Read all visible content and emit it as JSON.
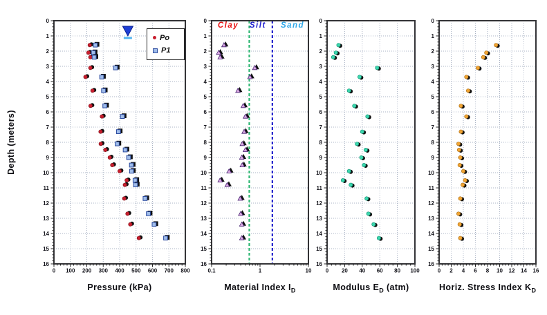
{
  "figure": {
    "ylabel": "Depth (meters)",
    "background": "#ffffff",
    "grid_color": "#aab3c4"
  },
  "chart_data": [
    {
      "id": "pressure",
      "type": "scatter",
      "xlabel": {
        "pre": "Pressure (kPa)",
        "sub": "",
        "post": ""
      },
      "xscale": "linear",
      "xlim": [
        0,
        800
      ],
      "xticks": [
        0,
        100,
        200,
        300,
        400,
        500,
        600,
        700,
        800
      ],
      "xminor": 20,
      "ylim": [
        0,
        16
      ],
      "y_direction": "down",
      "grid_x": true,
      "depths": [
        1.6,
        2.1,
        2.4,
        3.1,
        3.7,
        4.6,
        5.6,
        6.3,
        7.3,
        8.1,
        8.5,
        9.0,
        9.5,
        9.9,
        10.5,
        10.8,
        11.7,
        12.7,
        13.4,
        14.3
      ],
      "series": [
        {
          "name": "Po",
          "marker": "circle",
          "fill": "#c81e2e",
          "edge": "#7a0e16",
          "values": [
            218,
            210,
            222,
            222,
            192,
            235,
            223,
            292,
            284,
            285,
            313,
            340,
            355,
            400,
            443,
            432,
            428,
            448,
            465,
            517
          ]
        },
        {
          "name": "P1",
          "marker": "square",
          "fill": "#9fbcea",
          "edge": "#2b4a9e",
          "values": [
            252,
            240,
            245,
            375,
            291,
            302,
            310,
            417,
            393,
            385,
            434,
            455,
            472,
            473,
            494,
            497,
            555,
            575,
            610,
            680
          ]
        }
      ],
      "water_table": {
        "x": 450,
        "depth": 1.0,
        "fill": "#1e3fd6",
        "line_color": "#53b5f0"
      },
      "legend_position": "top-right"
    },
    {
      "id": "material-index",
      "type": "scatter",
      "xlabel": {
        "pre": "Material Index I",
        "sub": "D",
        "post": ""
      },
      "xscale": "log",
      "xlim": [
        0.1,
        10
      ],
      "xticks": [
        0.1,
        1,
        10
      ],
      "xtick_labels": [
        "0.1",
        "1",
        "10"
      ],
      "ylim": [
        0,
        16
      ],
      "y_direction": "down",
      "grid_x": false,
      "depths": [
        1.6,
        2.1,
        2.4,
        3.1,
        3.7,
        4.6,
        5.6,
        6.3,
        7.3,
        8.1,
        8.5,
        9.0,
        9.5,
        9.9,
        10.5,
        10.8,
        11.7,
        12.7,
        13.4,
        14.3
      ],
      "series": [
        {
          "name": "ID",
          "marker": "triangle",
          "fill": "#d8a8e0",
          "edge": "#452070",
          "values": [
            0.18,
            0.14,
            0.15,
            0.78,
            0.62,
            0.35,
            0.45,
            0.5,
            0.47,
            0.43,
            0.5,
            0.42,
            0.43,
            0.23,
            0.15,
            0.21,
            0.39,
            0.4,
            0.42,
            0.42
          ]
        }
      ],
      "zone_lines": [
        {
          "x": 0.6,
          "color": "#2eb673"
        },
        {
          "x": 1.8,
          "color": "#2525cc"
        }
      ],
      "zones": [
        {
          "label": "Clay",
          "color": "#e81212",
          "x": 0.22
        },
        {
          "label": "Silt",
          "color": "#2020d0",
          "x": 0.9
        },
        {
          "label": "Sand",
          "color": "#30a8e8",
          "x": 4.7
        }
      ]
    },
    {
      "id": "modulus",
      "type": "scatter",
      "xlabel": {
        "pre": "Modulus E",
        "sub": "D",
        "post": " (atm)"
      },
      "xscale": "linear",
      "xlim": [
        0,
        100
      ],
      "xticks": [
        0,
        20,
        40,
        60,
        80,
        100
      ],
      "xminor": 5,
      "ylim": [
        0,
        16
      ],
      "y_direction": "down",
      "grid_x": true,
      "depths": [
        1.6,
        2.1,
        2.4,
        3.1,
        3.7,
        4.6,
        5.6,
        6.3,
        7.3,
        8.1,
        8.5,
        9.0,
        9.5,
        9.9,
        10.5,
        10.8,
        11.7,
        12.7,
        13.4,
        14.3
      ],
      "series": [
        {
          "name": "ED",
          "marker": "circle",
          "fill": "#3cd6ad",
          "edge": "#0f8f72",
          "values": [
            13,
            10,
            7,
            57,
            37,
            25,
            31,
            46,
            40,
            34,
            44,
            39,
            42,
            25,
            18,
            27,
            45,
            47,
            53,
            59
          ]
        }
      ]
    },
    {
      "id": "horizontal-stress-index",
      "type": "scatter",
      "xlabel": {
        "pre": "Horiz. Stress Index K",
        "sub": "D",
        "post": ""
      },
      "xscale": "linear",
      "xlim": [
        0,
        16
      ],
      "xticks": [
        0,
        2,
        4,
        6,
        8,
        10,
        12,
        14,
        16
      ],
      "xminor": 0.5,
      "ylim": [
        0,
        16
      ],
      "y_direction": "down",
      "grid_x": true,
      "depths": [
        1.6,
        2.1,
        2.4,
        3.1,
        3.7,
        4.6,
        5.6,
        6.3,
        7.3,
        8.1,
        8.5,
        9.0,
        9.5,
        9.9,
        10.5,
        10.8,
        11.7,
        12.7,
        13.4,
        14.3
      ],
      "series": [
        {
          "name": "KD",
          "marker": "circle",
          "fill": "#f0a434",
          "edge": "#a86a10",
          "values": [
            9.4,
            7.8,
            7.3,
            6.4,
            4.5,
            4.8,
            3.6,
            4.5,
            3.6,
            3.2,
            3.3,
            3.5,
            3.4,
            4.0,
            4.3,
            3.9,
            3.5,
            3.2,
            3.4,
            3.5
          ]
        }
      ]
    }
  ]
}
